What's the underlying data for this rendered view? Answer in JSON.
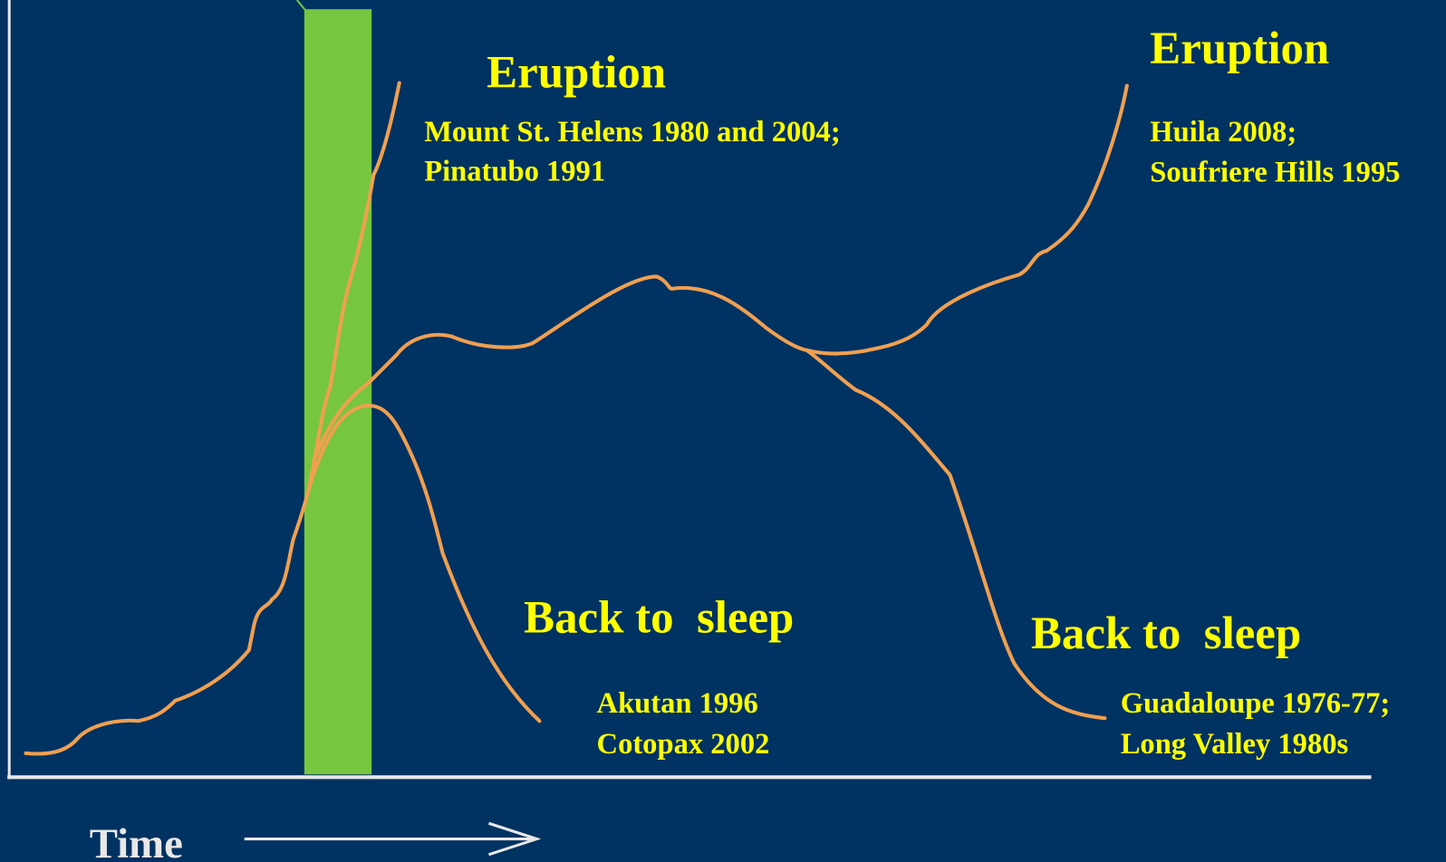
{
  "annotations": [
    {
      "heading": "Eruption",
      "examples": [
        "Mount St. Helens 1980 and 2004;",
        "Pinatubo 1991"
      ]
    },
    {
      "heading": "Eruption",
      "examples": [
        "Huila 2008;",
        "Soufriere Hills 1995"
      ]
    },
    {
      "heading": "Back to  sleep",
      "examples": [
        "Akutan 1996",
        "Cotopax 2002"
      ]
    },
    {
      "heading": "Back to  sleep",
      "examples": [
        "Guadaloupe 1976-77;",
        "Long Valley 1980s"
      ]
    }
  ],
  "x_axis_label": "Time"
}
